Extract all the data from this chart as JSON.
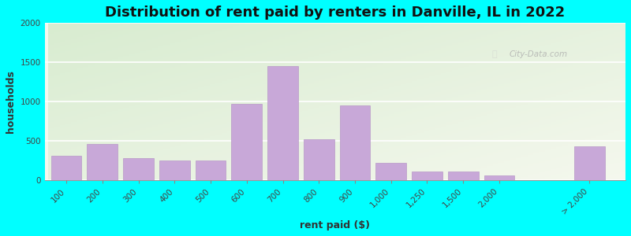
{
  "title": "Distribution of rent paid by renters in Danville, IL in 2022",
  "xlabel": "rent paid ($)",
  "ylabel": "households",
  "categories": [
    "100",
    "200",
    "300",
    "400",
    "500",
    "600",
    "700",
    "800",
    "900",
    "1,000",
    "1,250",
    "1,500",
    "2,000",
    "> 2,000"
  ],
  "bar_values": [
    310,
    460,
    280,
    255,
    250,
    975,
    1450,
    525,
    950,
    225,
    110,
    110,
    65,
    430
  ],
  "bar_color": "#c8a8d8",
  "bar_edge_color": "#b898c8",
  "background_outer": "#00ffff",
  "bg_top_left": "#d8ecd0",
  "bg_bottom_right": "#f5f8ee",
  "grid_color": "#ffffff",
  "ylim": [
    0,
    2000
  ],
  "yticks": [
    0,
    500,
    1000,
    1500,
    2000
  ],
  "title_fontsize": 13,
  "axis_label_fontsize": 9,
  "tick_fontsize": 7.5,
  "watermark": "City-Data.com"
}
